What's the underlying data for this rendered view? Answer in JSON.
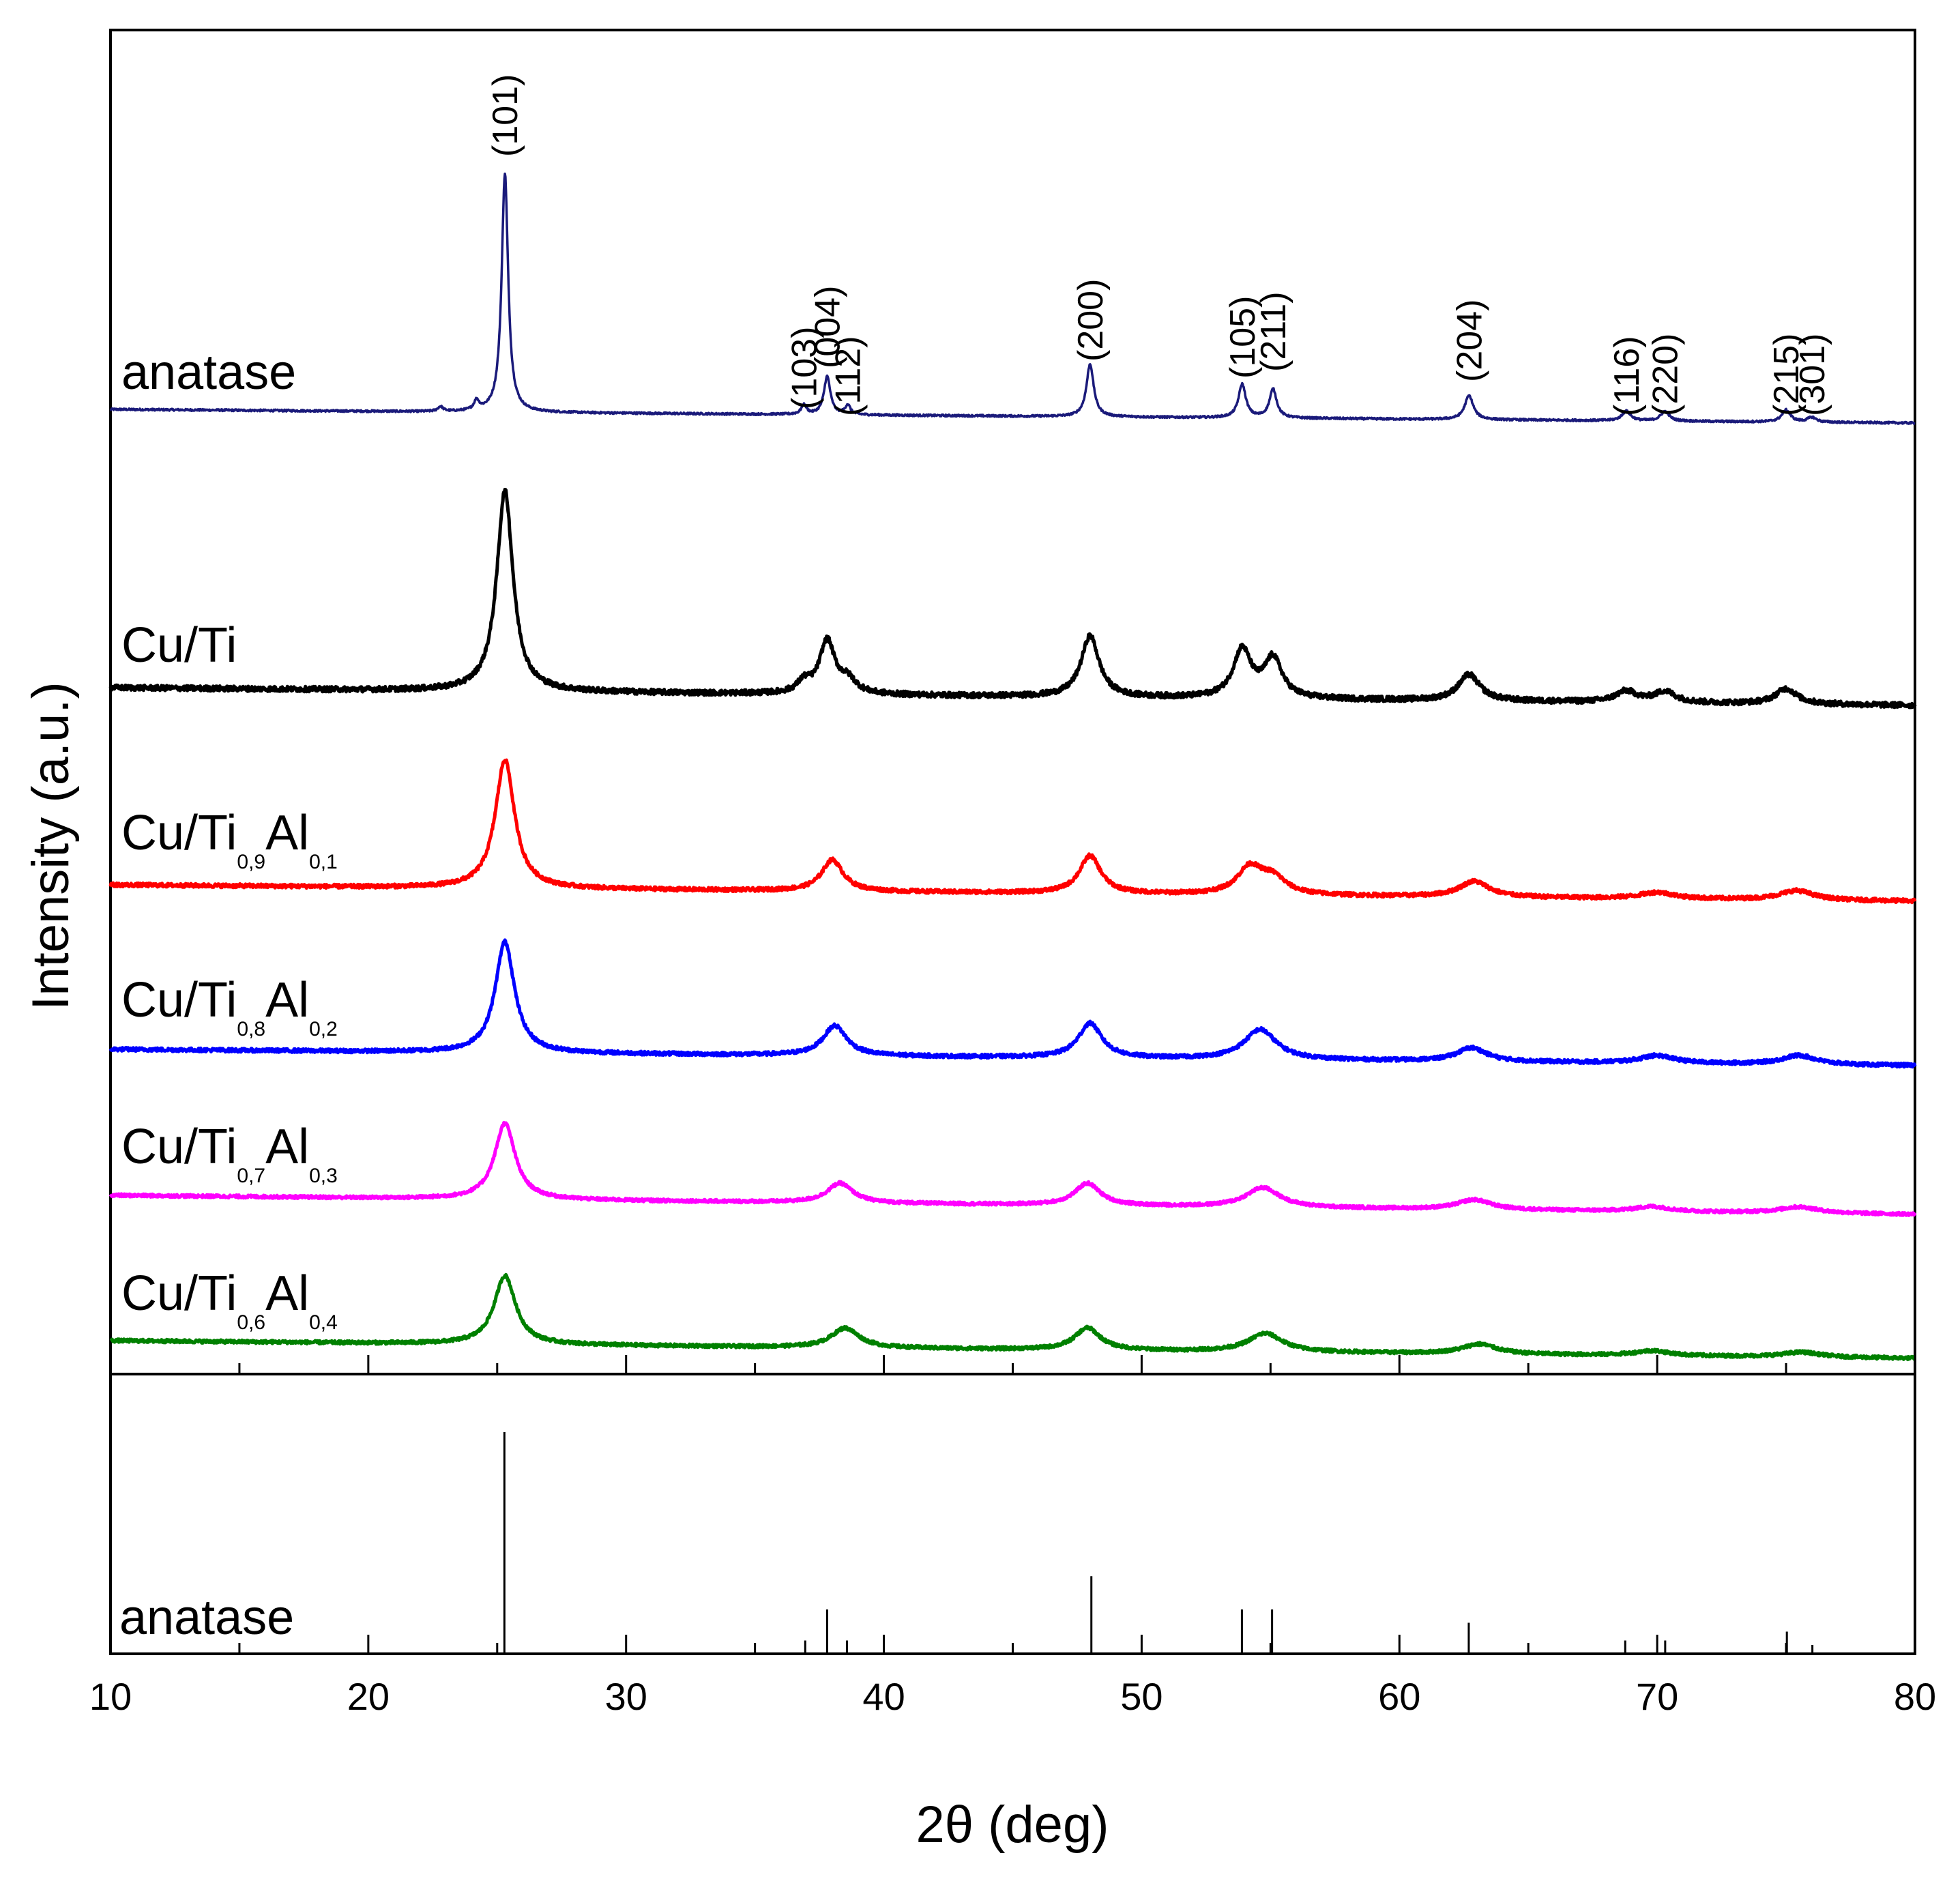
{
  "chart_data": {
    "type": "line",
    "title": "",
    "xlabel": "2θ (deg)",
    "ylabel": "Intensity (a.u.)",
    "xlim": [
      10,
      80
    ],
    "x_ticks": [
      "10",
      "20",
      "30",
      "40",
      "50",
      "60",
      "70",
      "80"
    ],
    "peak_labels": [
      {
        "hkl": "(101)",
        "two_theta": 25.3
      },
      {
        "hkl": "(103)",
        "two_theta": 36.9
      },
      {
        "hkl": "(004)",
        "two_theta": 37.8
      },
      {
        "hkl": "(112)",
        "two_theta": 38.6
      },
      {
        "hkl": "(200)",
        "two_theta": 48.0
      },
      {
        "hkl": "(105)",
        "two_theta": 53.9
      },
      {
        "hkl": "(211)",
        "two_theta": 55.1
      },
      {
        "hkl": "(204)",
        "two_theta": 62.7
      },
      {
        "hkl": "(116)",
        "two_theta": 68.8
      },
      {
        "hkl": "(220)",
        "two_theta": 70.3
      },
      {
        "hkl": "(215)",
        "two_theta": 75.0
      },
      {
        "hkl": "(301)",
        "two_theta": 76.0
      }
    ],
    "series": [
      {
        "name": "anatase",
        "label_main": "anatase",
        "label_sub1": "",
        "label_mid": "",
        "label_sub2": "",
        "color": "#1a1a7a",
        "baseline_left": 0.11,
        "baseline_right": 0.0,
        "peak_scale": 1.0,
        "noise": 0.004,
        "peaks": [
          {
            "x": 22.8,
            "h": 0.02,
            "w": 0.12
          },
          {
            "x": 24.2,
            "h": 0.04,
            "w": 0.12
          },
          {
            "x": 25.3,
            "h": 1.0,
            "w": 0.15
          },
          {
            "x": 36.9,
            "h": 0.04,
            "w": 0.12
          },
          {
            "x": 37.8,
            "h": 0.16,
            "w": 0.15
          },
          {
            "x": 38.6,
            "h": 0.04,
            "w": 0.12
          },
          {
            "x": 48.0,
            "h": 0.22,
            "w": 0.17
          },
          {
            "x": 53.9,
            "h": 0.14,
            "w": 0.17
          },
          {
            "x": 55.1,
            "h": 0.12,
            "w": 0.17
          },
          {
            "x": 62.7,
            "h": 0.1,
            "w": 0.2
          },
          {
            "x": 68.8,
            "h": 0.04,
            "w": 0.2
          },
          {
            "x": 70.3,
            "h": 0.04,
            "w": 0.2
          },
          {
            "x": 75.0,
            "h": 0.05,
            "w": 0.2
          },
          {
            "x": 76.0,
            "h": 0.02,
            "w": 0.2
          }
        ]
      },
      {
        "name": "Cu/Ti",
        "label_main": "Cu/Ti",
        "label_sub1": "",
        "label_mid": "",
        "label_sub2": "",
        "color": "#000000",
        "baseline_left": 0.08,
        "baseline_right": 0.0,
        "peak_scale": 1.0,
        "noise": 0.012,
        "peaks": [
          {
            "x": 25.3,
            "h": 0.92,
            "w": 0.38
          },
          {
            "x": 36.9,
            "h": 0.05,
            "w": 0.3
          },
          {
            "x": 37.8,
            "h": 0.24,
            "w": 0.36
          },
          {
            "x": 38.6,
            "h": 0.06,
            "w": 0.4
          },
          {
            "x": 48.0,
            "h": 0.28,
            "w": 0.42
          },
          {
            "x": 53.9,
            "h": 0.22,
            "w": 0.42
          },
          {
            "x": 55.1,
            "h": 0.18,
            "w": 0.42
          },
          {
            "x": 62.7,
            "h": 0.12,
            "w": 0.5
          },
          {
            "x": 68.8,
            "h": 0.05,
            "w": 0.5
          },
          {
            "x": 70.3,
            "h": 0.05,
            "w": 0.5
          },
          {
            "x": 75.0,
            "h": 0.07,
            "w": 0.5
          }
        ]
      },
      {
        "name": "Cu/Ti0,9Al0,1",
        "label_main": "Cu/Ti",
        "label_sub1": "0,9",
        "label_mid": "Al",
        "label_sub2": "0,1",
        "color": "#ff0000",
        "baseline_left": 0.05,
        "baseline_right": 0.0,
        "peak_scale": 1.0,
        "noise": 0.012,
        "peaks": [
          {
            "x": 25.3,
            "h": 0.82,
            "w": 0.45
          },
          {
            "x": 38.0,
            "h": 0.2,
            "w": 0.5
          },
          {
            "x": 48.0,
            "h": 0.24,
            "w": 0.5
          },
          {
            "x": 54.2,
            "h": 0.17,
            "w": 0.6
          },
          {
            "x": 55.1,
            "h": 0.1,
            "w": 0.6
          },
          {
            "x": 62.9,
            "h": 0.1,
            "w": 0.7
          },
          {
            "x": 70.0,
            "h": 0.04,
            "w": 0.8
          },
          {
            "x": 75.4,
            "h": 0.06,
            "w": 0.8
          }
        ]
      },
      {
        "name": "Cu/Ti0,8Al0,2",
        "label_main": "Cu/Ti",
        "label_sub1": "0,8",
        "label_mid": "Al",
        "label_sub2": "0,2",
        "color": "#0000ff",
        "baseline_left": 0.05,
        "baseline_right": 0.0,
        "peak_scale": 1.0,
        "noise": 0.012,
        "peaks": [
          {
            "x": 25.3,
            "h": 0.74,
            "w": 0.45
          },
          {
            "x": 38.1,
            "h": 0.2,
            "w": 0.55
          },
          {
            "x": 48.0,
            "h": 0.23,
            "w": 0.55
          },
          {
            "x": 54.6,
            "h": 0.2,
            "w": 0.75
          },
          {
            "x": 62.8,
            "h": 0.09,
            "w": 0.7
          },
          {
            "x": 70.0,
            "h": 0.05,
            "w": 0.8
          },
          {
            "x": 75.5,
            "h": 0.06,
            "w": 0.8
          }
        ]
      },
      {
        "name": "Cu/Ti0,7Al0,3",
        "label_main": "Cu/Ti",
        "label_sub1": "0,7",
        "label_mid": "Al",
        "label_sub2": "0,3",
        "color": "#ff00ff",
        "baseline_left": 0.05,
        "baseline_right": 0.0,
        "peak_scale": 1.0,
        "noise": 0.012,
        "peaks": [
          {
            "x": 25.3,
            "h": 0.62,
            "w": 0.48
          },
          {
            "x": 38.3,
            "h": 0.16,
            "w": 0.6
          },
          {
            "x": 47.9,
            "h": 0.18,
            "w": 0.6
          },
          {
            "x": 54.7,
            "h": 0.16,
            "w": 0.8
          },
          {
            "x": 62.9,
            "h": 0.08,
            "w": 0.8
          },
          {
            "x": 69.8,
            "h": 0.04,
            "w": 0.8
          },
          {
            "x": 75.5,
            "h": 0.05,
            "w": 0.9
          }
        ]
      },
      {
        "name": "Cu/Ti0,6Al0,4",
        "label_main": "Cu/Ti",
        "label_sub1": "0,6",
        "label_mid": "Al",
        "label_sub2": "0,4",
        "color": "#008000",
        "baseline_left": 0.06,
        "baseline_right": 0.0,
        "peak_scale": 1.0,
        "noise": 0.013,
        "peaks": [
          {
            "x": 25.3,
            "h": 0.56,
            "w": 0.5
          },
          {
            "x": 38.5,
            "h": 0.16,
            "w": 0.65
          },
          {
            "x": 47.9,
            "h": 0.18,
            "w": 0.6
          },
          {
            "x": 54.8,
            "h": 0.15,
            "w": 0.8
          },
          {
            "x": 63.1,
            "h": 0.08,
            "w": 0.8
          },
          {
            "x": 69.8,
            "h": 0.04,
            "w": 0.8
          },
          {
            "x": 75.6,
            "h": 0.04,
            "w": 0.9
          }
        ]
      }
    ],
    "reference": {
      "name": "anatase",
      "label": "anatase",
      "color": "#000000",
      "lines": [
        {
          "x": 25.28,
          "h": 1.0
        },
        {
          "x": 36.95,
          "h": 0.06
        },
        {
          "x": 37.8,
          "h": 0.2
        },
        {
          "x": 38.57,
          "h": 0.06
        },
        {
          "x": 48.05,
          "h": 0.35
        },
        {
          "x": 53.89,
          "h": 0.2
        },
        {
          "x": 55.06,
          "h": 0.2
        },
        {
          "x": 62.69,
          "h": 0.14
        },
        {
          "x": 68.76,
          "h": 0.06
        },
        {
          "x": 70.31,
          "h": 0.06
        },
        {
          "x": 75.03,
          "h": 0.1
        },
        {
          "x": 76.02,
          "h": 0.04
        }
      ]
    }
  }
}
